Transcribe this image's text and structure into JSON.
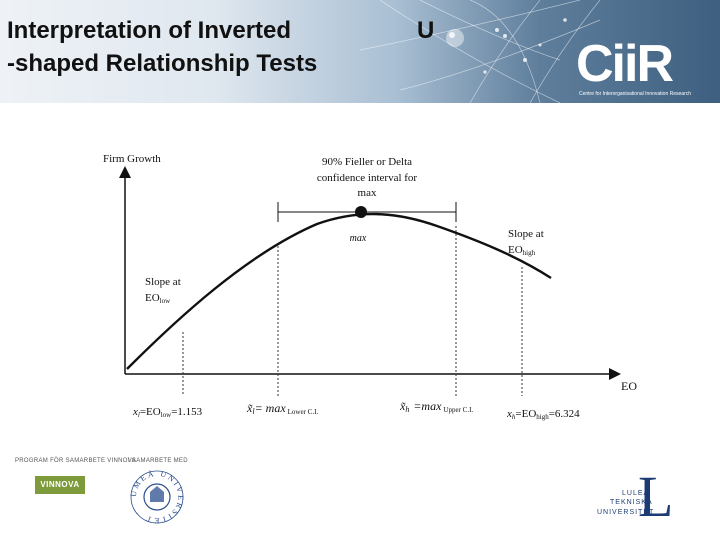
{
  "header": {
    "title_line1": "Interpretation of Inverted",
    "title_line2": "-shaped Relationship Tests",
    "title_u": "U"
  },
  "logos": {
    "ciir": "CiiR",
    "ciir_sub": "Centre for Interorganisational Innovation Research",
    "vinnova": "VINNOVA",
    "pre_label": "PROGRAM FÖR SAMARBETE VINNOVA",
    "partner_label": "I SAMARBETE MED",
    "umea": "UMEÅ UNIVERSITET",
    "ltu_line1": "LULEÅ",
    "ltu_line2": "TEKNISKA",
    "ltu_line3": "UNIVERSITET"
  },
  "chart": {
    "y_axis_label": "Firm Growth",
    "x_axis_label": "EO",
    "ci_label_1": "90% Fieller or Delta",
    "ci_label_2": "confidence interval for",
    "ci_label_3": "max",
    "max_label": "max",
    "slope_low_1": "Slope at",
    "slope_low_2": "EO",
    "slope_low_sub": "low",
    "slope_high_1": "Slope at",
    "slope_high_2": "EO",
    "slope_high_sub": "high",
    "x_low_label": "x",
    "x_low_sub": "l",
    "x_low_eq": "=EO",
    "x_low_sub2": "low",
    "x_low_val": "=1.153",
    "x_lower_ci_sym": "x̃",
    "x_lower_ci_sub": "l",
    "x_lower_ci_eq": "= max",
    "x_lower_ci_tag": "Lower C.I.",
    "x_upper_ci_sym": "x̃",
    "x_upper_ci_sub": "h",
    "x_upper_ci_eq": "=max",
    "x_upper_ci_tag": "Upper C.I.",
    "x_high_label": "x",
    "x_high_sub": "h",
    "x_high_eq": "=EO",
    "x_high_sub2": "high",
    "x_high_val": "=6.324"
  }
}
